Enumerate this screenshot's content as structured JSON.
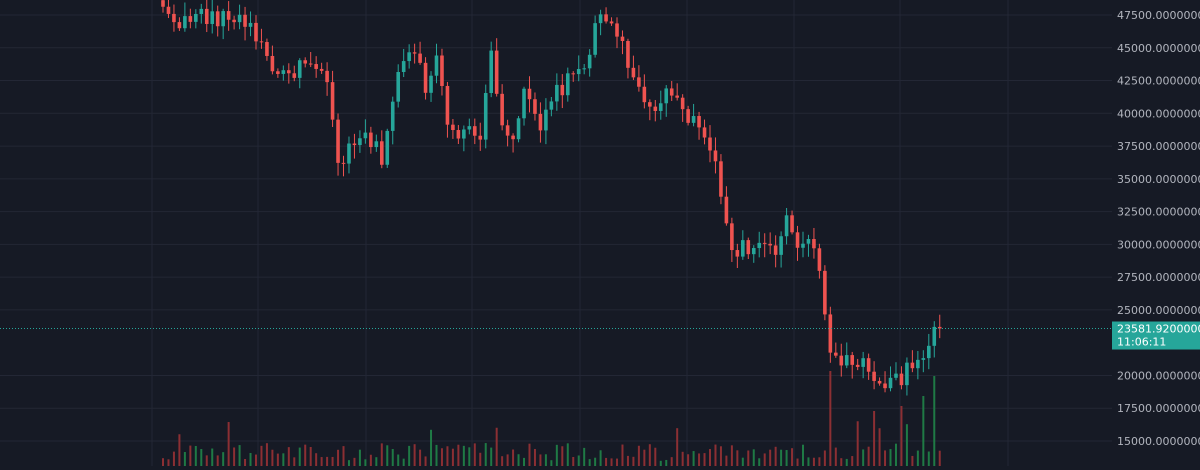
{
  "chart_data": {
    "type": "candlestick",
    "title": "",
    "xlabel": "",
    "ylabel": "",
    "ylim": [
      13700,
      48800
    ],
    "y_ticks": [
      "47500.00000000",
      "45000.00000000",
      "42500.00000000",
      "40000.00000000",
      "37500.00000000",
      "35000.00000000",
      "32500.00000000",
      "30000.00000000",
      "27500.00000000",
      "25000.00000000",
      "20000.00000000",
      "17500.00000000",
      "15000.00000000"
    ],
    "grid": true,
    "last_price": {
      "value": 23581.92,
      "label": "23581.92000000",
      "countdown": "11:06:11"
    },
    "colors": {
      "background": "#161a25",
      "grid": "#232735",
      "up": "#26a69a",
      "down": "#ef5350",
      "volume_up": "#1f7a45",
      "volume_down": "#8c2f33",
      "price_line": "#26a69a",
      "axis_text": "#b2b5be"
    },
    "price_path": [
      [
        0,
        47800
      ],
      [
        4,
        46900
      ],
      [
        7,
        47600
      ],
      [
        10,
        47000
      ],
      [
        13,
        47400
      ],
      [
        16,
        46800
      ],
      [
        19,
        44300
      ],
      [
        22,
        42600
      ],
      [
        25,
        43700
      ],
      [
        27,
        43400
      ],
      [
        30,
        42200
      ],
      [
        32,
        36200
      ],
      [
        34,
        37000
      ],
      [
        37,
        38200
      ],
      [
        40,
        36700
      ],
      [
        43,
        43200
      ],
      [
        46,
        44700
      ],
      [
        48,
        42200
      ],
      [
        50,
        44300
      ],
      [
        52,
        39700
      ],
      [
        55,
        38300
      ],
      [
        58,
        38600
      ],
      [
        60,
        44700
      ],
      [
        62,
        39400
      ],
      [
        64,
        38300
      ],
      [
        66,
        41400
      ],
      [
        69,
        38700
      ],
      [
        72,
        41700
      ],
      [
        75,
        42700
      ],
      [
        78,
        44700
      ],
      [
        80,
        47700
      ],
      [
        83,
        46500
      ],
      [
        85,
        43200
      ],
      [
        87,
        41800
      ],
      [
        89,
        40300
      ],
      [
        92,
        41200
      ],
      [
        94,
        40700
      ],
      [
        97,
        39200
      ],
      [
        100,
        37800
      ],
      [
        102,
        33700
      ],
      [
        104,
        29700
      ],
      [
        106,
        29800
      ],
      [
        109,
        29900
      ],
      [
        112,
        29100
      ],
      [
        114,
        31600
      ],
      [
        116,
        29900
      ],
      [
        118,
        30700
      ],
      [
        120,
        28600
      ],
      [
        122,
        21700
      ],
      [
        124,
        20700
      ],
      [
        127,
        21300
      ],
      [
        130,
        20100
      ],
      [
        132,
        19200
      ],
      [
        134,
        19600
      ],
      [
        136,
        20300
      ],
      [
        139,
        20900
      ],
      [
        141,
        23700
      ],
      [
        142,
        23581.92
      ]
    ],
    "volume_spikes": [
      [
        122,
        0.95
      ],
      [
        130,
        0.55
      ],
      [
        135,
        0.6
      ],
      [
        139,
        0.7
      ],
      [
        141,
        0.9
      ]
    ]
  }
}
